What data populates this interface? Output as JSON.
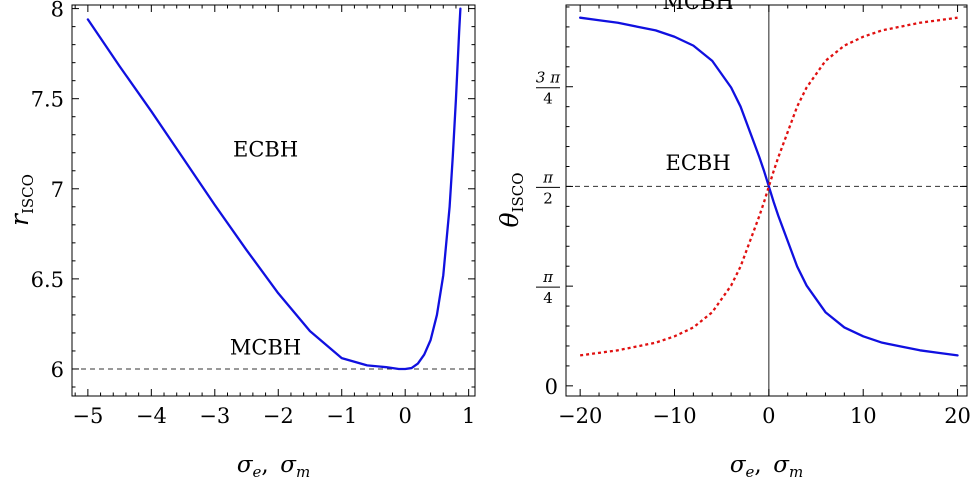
{
  "chart_data": [
    {
      "type": "line",
      "xlabel_parts": {
        "a": "σ",
        "a_sub": "e",
        "sep": ",",
        "b": "σ",
        "b_sub": "m"
      },
      "ylabel_parts": {
        "main": "r",
        "sub": "ISCO"
      },
      "xlim": [
        -5.25,
        1.1
      ],
      "ylim": [
        5.85,
        8.02
      ],
      "x_ticks": [
        -5,
        -4,
        -3,
        -2,
        -1,
        0,
        1
      ],
      "x_tick_labels": [
        "−5",
        "−4",
        "−3",
        "−2",
        "−1",
        "0",
        "1"
      ],
      "y_ticks": [
        6,
        6.5,
        7,
        7.5,
        8
      ],
      "y_tick_labels": [
        "6",
        "6.5",
        "7",
        "7.5",
        "8"
      ],
      "reference_lines": [
        {
          "orientation": "horizontal",
          "value": 6,
          "style": "dashed"
        }
      ],
      "annotations": [
        {
          "text": "ECBH",
          "x": -2.2,
          "y": 7.18
        },
        {
          "text": "MCBH",
          "x": -2.2,
          "y": 6.08
        }
      ],
      "series": [
        {
          "color": "#1010e0",
          "style": "solid",
          "x": [
            -5.0,
            -4.5,
            -4.0,
            -3.5,
            -3.0,
            -2.5,
            -2.0,
            -1.5,
            -1.0,
            -0.6,
            -0.3,
            -0.1,
            0.0,
            0.1,
            0.2,
            0.3,
            0.4,
            0.5,
            0.6,
            0.7,
            0.75,
            0.8,
            0.83,
            0.85,
            0.87
          ],
          "y": [
            7.94,
            7.68,
            7.43,
            7.17,
            6.91,
            6.66,
            6.42,
            6.21,
            6.06,
            6.02,
            6.01,
            6.0,
            6.0,
            6.005,
            6.03,
            6.08,
            6.16,
            6.3,
            6.52,
            6.9,
            7.18,
            7.5,
            7.72,
            7.87,
            8.0
          ]
        }
      ]
    },
    {
      "type": "line",
      "xlabel_parts": {
        "a": "σ",
        "a_sub": "e",
        "sep": ",",
        "b": "σ",
        "b_sub": "m"
      },
      "ylabel_parts": {
        "main": "θ",
        "sub": "ISCO"
      },
      "xlim": [
        -21.5,
        21.0
      ],
      "ylim": [
        -0.08,
        3.0
      ],
      "x_ticks": [
        -20,
        -10,
        0,
        10,
        20
      ],
      "x_tick_labels": [
        "−20",
        "−10",
        "0",
        "10",
        "20"
      ],
      "y_ticks": [
        0,
        0.785398,
        1.570796,
        2.356194
      ],
      "y_tick_labels": [
        {
          "text": "0"
        },
        {
          "num": "π",
          "den": "4"
        },
        {
          "num": "π",
          "den": "2"
        },
        {
          "num": "3 π",
          "den": "4"
        }
      ],
      "reference_lines": [
        {
          "orientation": "horizontal",
          "value": 1.570796,
          "style": "dashed"
        },
        {
          "orientation": "vertical",
          "value": 0,
          "style": "solid"
        }
      ],
      "annotations": [
        {
          "text": "ECBH",
          "x": -7.5,
          "y": 1.7
        },
        {
          "text": "MCBH",
          "x": -7.5,
          "y": 2.97
        }
      ],
      "series": [
        {
          "color": "#1010e0",
          "style": "solid",
          "x": [
            -20,
            -18,
            -16,
            -14,
            -12,
            -10,
            -8,
            -6,
            -4,
            -3,
            -2,
            -1.5,
            -1,
            -0.5,
            0,
            0.5,
            1,
            1.5,
            2,
            3,
            4,
            6,
            8,
            10,
            12,
            14,
            16,
            18,
            20
          ],
          "y": [
            2.9,
            2.88,
            2.86,
            2.83,
            2.8,
            2.75,
            2.68,
            2.56,
            2.35,
            2.2,
            2.0,
            1.9,
            1.8,
            1.69,
            1.571,
            1.45,
            1.34,
            1.24,
            1.14,
            0.94,
            0.79,
            0.58,
            0.46,
            0.39,
            0.34,
            0.31,
            0.28,
            0.26,
            0.24
          ]
        },
        {
          "color": "#e01010",
          "style": "dotted",
          "x": [
            -20,
            -18,
            -16,
            -14,
            -12,
            -10,
            -8,
            -6,
            -4,
            -3,
            -2,
            -1.5,
            -1,
            -0.5,
            0,
            0.5,
            1,
            1.5,
            2,
            3,
            4,
            6,
            8,
            10,
            12,
            14,
            16,
            18,
            20
          ],
          "y": [
            0.24,
            0.26,
            0.28,
            0.31,
            0.34,
            0.39,
            0.46,
            0.58,
            0.79,
            0.94,
            1.14,
            1.24,
            1.34,
            1.45,
            1.571,
            1.69,
            1.8,
            1.9,
            2.0,
            2.2,
            2.35,
            2.56,
            2.68,
            2.75,
            2.8,
            2.83,
            2.86,
            2.88,
            2.9
          ]
        }
      ]
    }
  ]
}
